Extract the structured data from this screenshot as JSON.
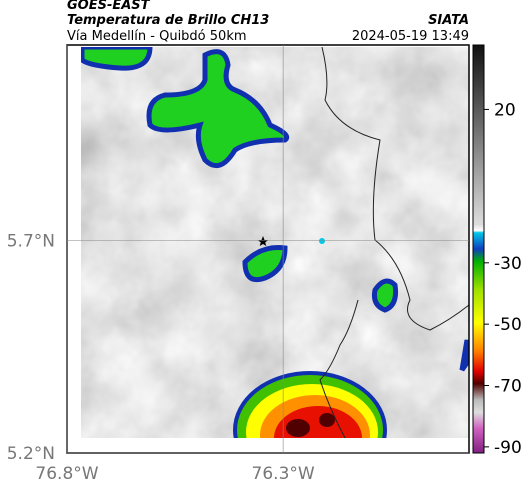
{
  "header": {
    "source": "GOES-EAST",
    "title": "Temperatura de Brillo CH13",
    "subtitle": "Vía Medellín - Quibdó 50km",
    "brand": "SIATA",
    "timestamp": "2024-05-19 13:49"
  },
  "map": {
    "xlim": [
      -76.8,
      -75.87
    ],
    "ylim": [
      5.2,
      6.16
    ],
    "xticks": [
      {
        "value": -76.8,
        "label": "76.8°W"
      },
      {
        "value": -76.3,
        "label": "76.3°W"
      }
    ],
    "yticks": [
      {
        "value": 5.2,
        "label": "5.2°N"
      },
      {
        "value": 5.7,
        "label": "5.7°N"
      }
    ],
    "grid": true
  },
  "colorbar": {
    "clim": [
      -92,
      41
    ],
    "ticks": [
      20,
      -30,
      -50,
      -70,
      -90
    ]
  }
}
